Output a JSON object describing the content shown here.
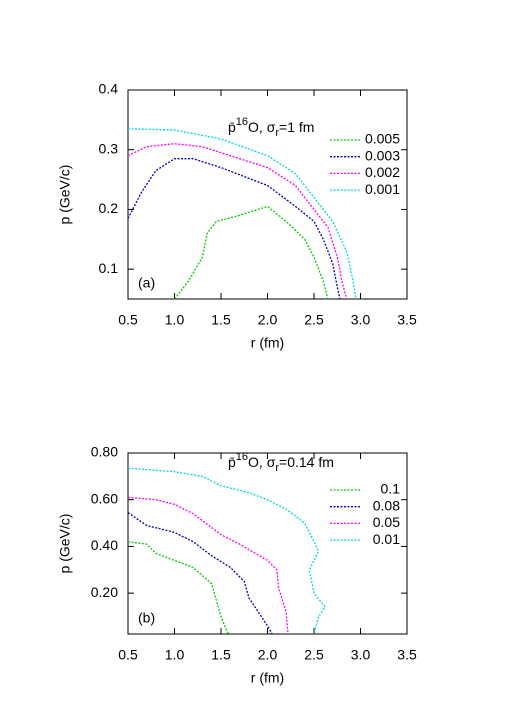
{
  "chart_data": [
    {
      "type": "line",
      "panel_label": "(a)",
      "xlabel": "r (fm)",
      "ylabel": "p (GeV/c)",
      "legend_title": {
        "base": "p̄",
        "sup": "16",
        "element": "O, σ",
        "sub": "r",
        "rest": "=1 fm"
      },
      "xlim": [
        0.5,
        3.5
      ],
      "ylim": [
        0.05,
        0.4
      ],
      "xticks": [
        0.5,
        {
          "value": 1,
          "label": "1.0"
        },
        1.5,
        {
          "value": 2,
          "label": "2.0"
        },
        2.5,
        {
          "value": 3,
          "label": "3.0"
        },
        3.5
      ],
      "yticks": [
        0.1,
        0.2,
        0.3,
        0.4
      ],
      "series": [
        {
          "name": "0.005",
          "color": "#00cc00",
          "x": [
            1.0,
            1.15,
            1.3,
            1.35,
            1.45,
            1.7,
            2.0,
            2.2,
            2.4,
            2.5,
            2.6,
            2.65
          ],
          "values": [
            0.05,
            0.08,
            0.12,
            0.16,
            0.18,
            0.19,
            0.205,
            0.18,
            0.15,
            0.12,
            0.08,
            0.05
          ]
        },
        {
          "name": "0.003",
          "color": "#0000cc",
          "x": [
            0.5,
            0.65,
            0.8,
            1.0,
            1.2,
            1.5,
            2.0,
            2.3,
            2.5,
            2.6,
            2.7,
            2.75,
            2.78
          ],
          "values": [
            0.185,
            0.23,
            0.265,
            0.285,
            0.285,
            0.27,
            0.24,
            0.205,
            0.18,
            0.15,
            0.11,
            0.07,
            0.05
          ]
        },
        {
          "name": "0.002",
          "color": "#ff00ff",
          "x": [
            0.5,
            0.7,
            1.0,
            1.3,
            1.7,
            2.0,
            2.3,
            2.5,
            2.65,
            2.75,
            2.8,
            2.85
          ],
          "values": [
            0.29,
            0.305,
            0.31,
            0.305,
            0.285,
            0.27,
            0.24,
            0.2,
            0.17,
            0.12,
            0.08,
            0.05
          ]
        },
        {
          "name": "0.001",
          "color": "#00d8d8",
          "x": [
            0.5,
            1.0,
            1.5,
            2.0,
            2.3,
            2.5,
            2.7,
            2.85,
            2.92,
            2.95
          ],
          "values": [
            0.335,
            0.333,
            0.318,
            0.29,
            0.26,
            0.22,
            0.18,
            0.13,
            0.08,
            0.05
          ]
        }
      ]
    },
    {
      "type": "line",
      "panel_label": "(b)",
      "xlabel": "r (fm)",
      "ylabel": "p (GeV/c)",
      "legend_title": {
        "base": "p̄",
        "sup": "16",
        "element": "O, σ",
        "sub": "r",
        "rest": "=0.14 fm"
      },
      "xlim": [
        0.5,
        3.5
      ],
      "ylim": [
        0.025,
        0.8
      ],
      "xticks": [
        0.5,
        {
          "value": 1,
          "label": "1.0"
        },
        1.5,
        {
          "value": 2,
          "label": "2.0"
        },
        2.5,
        {
          "value": 3,
          "label": "3.0"
        },
        3.5
      ],
      "yticks": [
        {
          "value": 0.2,
          "label": "0.20"
        },
        {
          "value": 0.4,
          "label": "0.40"
        },
        {
          "value": 0.6,
          "label": "0.60"
        },
        {
          "value": 0.8,
          "label": "0.80"
        }
      ],
      "series": [
        {
          "name": "0.1",
          "color": "#00cc00",
          "x": [
            0.5,
            0.7,
            0.8,
            1.0,
            1.2,
            1.4,
            1.45,
            1.5,
            1.55,
            1.58
          ],
          "values": [
            0.42,
            0.41,
            0.37,
            0.34,
            0.31,
            0.24,
            0.17,
            0.1,
            0.05,
            0.025
          ]
        },
        {
          "name": "0.08",
          "color": "#0000cc",
          "x": [
            0.5,
            0.7,
            1.0,
            1.2,
            1.4,
            1.6,
            1.75,
            1.8,
            1.9,
            2.0,
            2.05
          ],
          "values": [
            0.545,
            0.49,
            0.46,
            0.42,
            0.36,
            0.31,
            0.25,
            0.18,
            0.12,
            0.06,
            0.025
          ]
        },
        {
          "name": "0.05",
          "color": "#ff00ff",
          "x": [
            0.5,
            0.8,
            1.0,
            1.2,
            1.5,
            1.7,
            2.0,
            2.1,
            2.12,
            2.2,
            2.22
          ],
          "values": [
            0.61,
            0.6,
            0.58,
            0.54,
            0.45,
            0.41,
            0.34,
            0.3,
            0.22,
            0.12,
            0.025
          ]
        },
        {
          "name": "0.01",
          "color": "#00d8d8",
          "x": [
            0.5,
            1.0,
            1.3,
            1.5,
            1.8,
            2.0,
            2.2,
            2.4,
            2.5,
            2.55,
            2.45,
            2.5,
            2.62,
            2.55,
            2.5
          ],
          "values": [
            0.735,
            0.72,
            0.7,
            0.66,
            0.63,
            0.6,
            0.56,
            0.5,
            0.42,
            0.38,
            0.3,
            0.2,
            0.14,
            0.1,
            0.025
          ]
        }
      ]
    }
  ]
}
